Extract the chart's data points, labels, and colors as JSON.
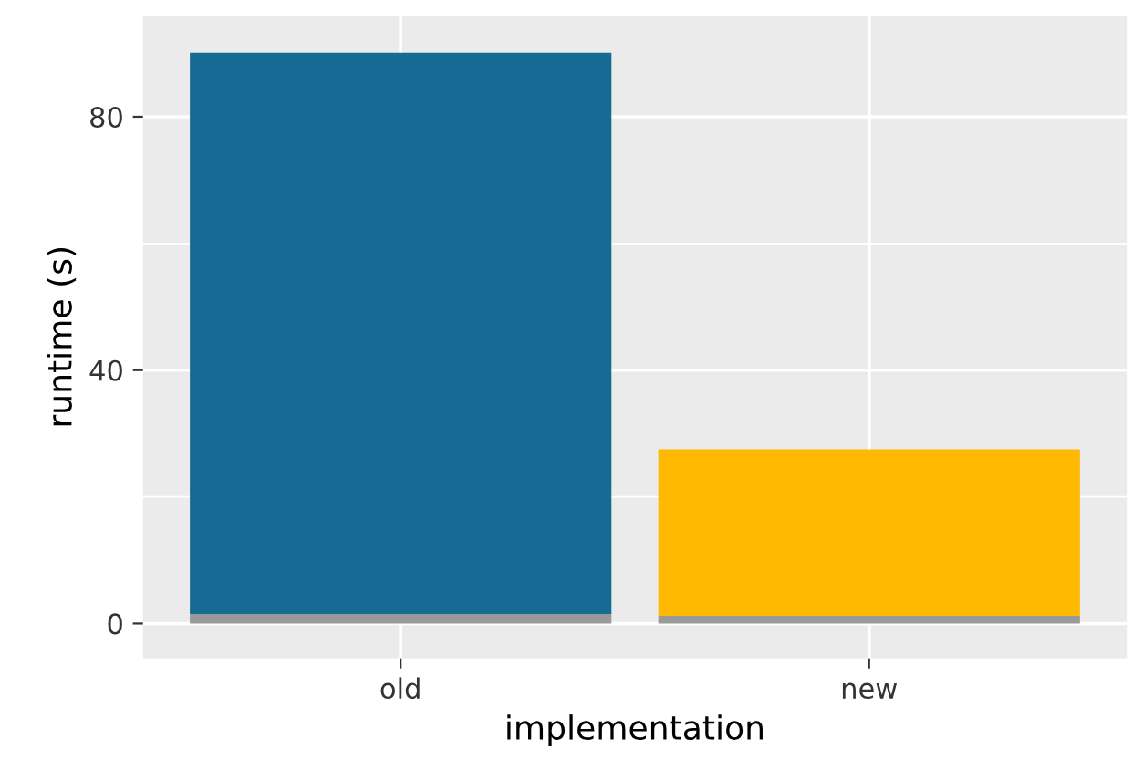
{
  "chart_data": {
    "type": "bar",
    "stacked": true,
    "xlabel": "implementation",
    "ylabel": "runtime (s)",
    "categories": [
      "old",
      "new"
    ],
    "series": [
      {
        "color": "#999999",
        "values": [
          1.5,
          1.2
        ]
      },
      {
        "colors": [
          "#156b93",
          "#ffb900"
        ],
        "values": [
          88.6,
          26.3
        ]
      }
    ],
    "ylim": [
      -5.5,
      96
    ],
    "yticks": [
      0,
      {
        "value": 20,
        "label": null
      },
      40,
      {
        "value": 60,
        "label": null
      },
      80
    ],
    "grid": true,
    "legend": false
  }
}
